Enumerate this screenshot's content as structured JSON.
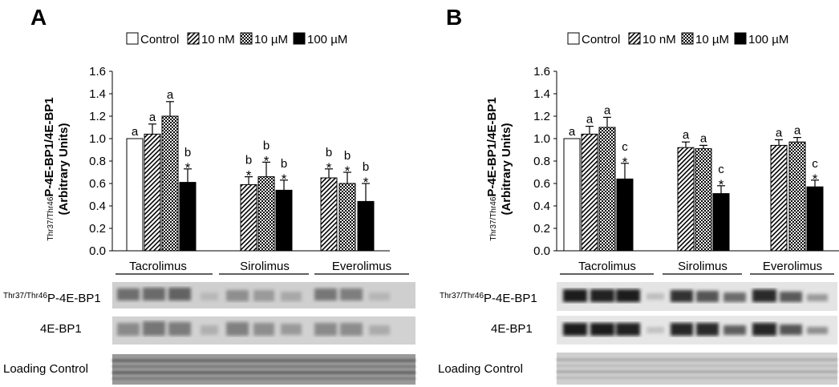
{
  "legend": {
    "items": [
      {
        "label": "Control",
        "pattern": "control"
      },
      {
        "label": "10 nM",
        "pattern": "diag"
      },
      {
        "label": "10 µM",
        "pattern": "check"
      },
      {
        "label": "100 µM",
        "pattern": "solid"
      }
    ]
  },
  "blot_labels": {
    "pe_sup": "Thr37/Thr46",
    "pe_main": "P-4E-BP1",
    "total": "4E-BP1",
    "loading": "Loading Control"
  },
  "chart_data": [
    {
      "panel": "A",
      "type": "bar",
      "ylabel_sup": "Thr37/Thr46",
      "ylabel_main": "P-4E-BP1/4E-BP1",
      "ylabel_units": "(Arbitrary Units)",
      "ylim": [
        0,
        1.6
      ],
      "yticks": [
        "0.0",
        "0.2",
        "0.4",
        "0.6",
        "0.8",
        "1.0",
        "1.2",
        "1.4",
        "1.6"
      ],
      "groups": [
        {
          "name": "Tacrolimus",
          "bars": [
            {
              "pattern": "control",
              "value": 1.0,
              "err": 0,
              "letter": "a",
              "star": false
            },
            {
              "pattern": "diag",
              "value": 1.04,
              "err": 0.09,
              "letter": "a",
              "star": false
            },
            {
              "pattern": "check",
              "value": 1.2,
              "err": 0.13,
              "letter": "a",
              "star": false
            },
            {
              "pattern": "solid",
              "value": 0.61,
              "err": 0.12,
              "letter": "b",
              "star": true
            }
          ]
        },
        {
          "name": "Sirolimus",
          "bars": [
            {
              "pattern": "diag",
              "value": 0.59,
              "err": 0.07,
              "letter": "b",
              "star": true
            },
            {
              "pattern": "check",
              "value": 0.66,
              "err": 0.13,
              "letter": "b",
              "star": true
            },
            {
              "pattern": "solid",
              "value": 0.54,
              "err": 0.09,
              "letter": "b",
              "star": true
            }
          ]
        },
        {
          "name": "Everolimus",
          "bars": [
            {
              "pattern": "diag",
              "value": 0.65,
              "err": 0.08,
              "letter": "b",
              "star": true
            },
            {
              "pattern": "check",
              "value": 0.6,
              "err": 0.1,
              "letter": "b",
              "star": true
            },
            {
              "pattern": "solid",
              "value": 0.44,
              "err": 0.16,
              "letter": "b",
              "star": true
            }
          ]
        }
      ]
    },
    {
      "panel": "B",
      "type": "bar",
      "ylabel_sup": "Thr37/Thr46",
      "ylabel_main": "P-4E-BP1/4E-BP1",
      "ylabel_units": "(Arbitrary Units)",
      "ylim": [
        0,
        1.6
      ],
      "yticks": [
        "0.0",
        "0.2",
        "0.4",
        "0.6",
        "0.8",
        "1.0",
        "1.2",
        "1.4",
        "1.6"
      ],
      "groups": [
        {
          "name": "Tacrolimus",
          "bars": [
            {
              "pattern": "control",
              "value": 1.0,
              "err": 0,
              "letter": "a",
              "star": false
            },
            {
              "pattern": "diag",
              "value": 1.04,
              "err": 0.07,
              "letter": "a",
              "star": false
            },
            {
              "pattern": "check",
              "value": 1.1,
              "err": 0.09,
              "letter": "a",
              "star": false
            },
            {
              "pattern": "solid",
              "value": 0.64,
              "err": 0.14,
              "letter": "c",
              "star": true
            }
          ]
        },
        {
          "name": "Sirolimus",
          "bars": [
            {
              "pattern": "diag",
              "value": 0.92,
              "err": 0.05,
              "letter": "a",
              "star": false
            },
            {
              "pattern": "check",
              "value": 0.91,
              "err": 0.03,
              "letter": "a",
              "star": false
            },
            {
              "pattern": "solid",
              "value": 0.51,
              "err": 0.07,
              "letter": "c",
              "star": true
            }
          ]
        },
        {
          "name": "Everolimus",
          "bars": [
            {
              "pattern": "diag",
              "value": 0.94,
              "err": 0.05,
              "letter": "a",
              "star": false
            },
            {
              "pattern": "check",
              "value": 0.97,
              "err": 0.04,
              "letter": "a",
              "star": false
            },
            {
              "pattern": "solid",
              "value": 0.57,
              "err": 0.06,
              "letter": "c",
              "star": true
            }
          ]
        }
      ]
    }
  ]
}
